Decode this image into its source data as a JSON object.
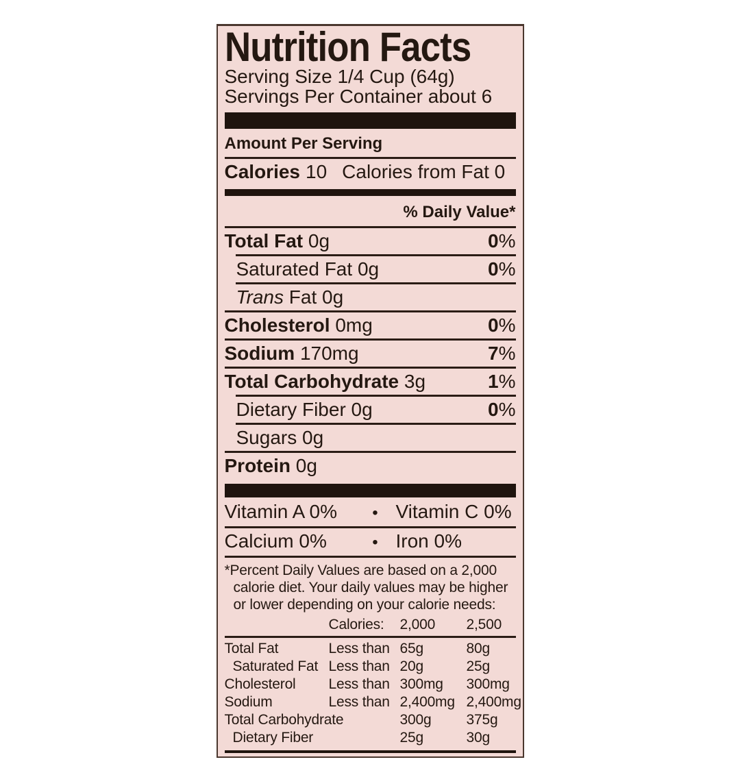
{
  "colors": {
    "label_background": "#f3dad6",
    "ink": "#241811",
    "page_background": "#ffffff"
  },
  "label": {
    "title": "Nutrition Facts",
    "serving_size": "Serving Size 1/4 Cup (64g)",
    "servings_per_container": "Servings Per Container about 6",
    "amount_per_serving": "Amount Per Serving",
    "calories": {
      "label": "Calories",
      "value": "10",
      "from_fat": "Calories from Fat 0"
    },
    "daily_value_header": "% Daily Value*",
    "percent_sign": "%",
    "nutrients": [
      {
        "name": "Total Fat",
        "amount": "0g",
        "dv": "0"
      },
      {
        "name": "Saturated Fat",
        "amount": "0g",
        "dv": "0"
      },
      {
        "name_italic": "Trans",
        "name_rest": "Fat",
        "amount": "0g"
      },
      {
        "name": "Cholesterol",
        "amount": "0mg",
        "dv": "0"
      },
      {
        "name": "Sodium",
        "amount": "170mg",
        "dv": "7"
      },
      {
        "name": "Total Carbohydrate",
        "amount": "3g",
        "dv": "1"
      },
      {
        "name": "Dietary Fiber",
        "amount": "0g",
        "dv": "0"
      },
      {
        "name": "Sugars",
        "amount": "0g"
      },
      {
        "name": "Protein",
        "amount": "0g"
      }
    ],
    "bullet": "•",
    "vitamins": [
      {
        "left": "Vitamin A 0%",
        "right": "Vitamin C 0%"
      },
      {
        "left": "Calcium 0%",
        "right": "Iron 0%"
      }
    ],
    "footnote_marker": "*",
    "footnote_text": "Percent Daily Values are based on a 2,000 calorie diet. Your daily values may be higher or lower depending on your calorie needs:",
    "dv_table": {
      "calories_header": "Calories:",
      "col_2000": "2,000",
      "col_2500": "2,500",
      "rows": [
        {
          "name": "Total Fat",
          "qualifier": "Less than",
          "v2000": "65g",
          "v2500": "80g"
        },
        {
          "name": "Saturated Fat",
          "qualifier": "Less than",
          "v2000": "20g",
          "v2500": "25g"
        },
        {
          "name": "Cholesterol",
          "qualifier": "Less than",
          "v2000": "300mg",
          "v2500": "300mg"
        },
        {
          "name": "Sodium",
          "qualifier": "Less than",
          "v2000": "2,400mg",
          "v2500": "2,400mg"
        },
        {
          "name": "Total Carbohydrate",
          "qualifier": "",
          "v2000": "300g",
          "v2500": "375g"
        },
        {
          "name": "Dietary Fiber",
          "qualifier": "",
          "v2000": "25g",
          "v2500": "30g"
        }
      ]
    }
  }
}
